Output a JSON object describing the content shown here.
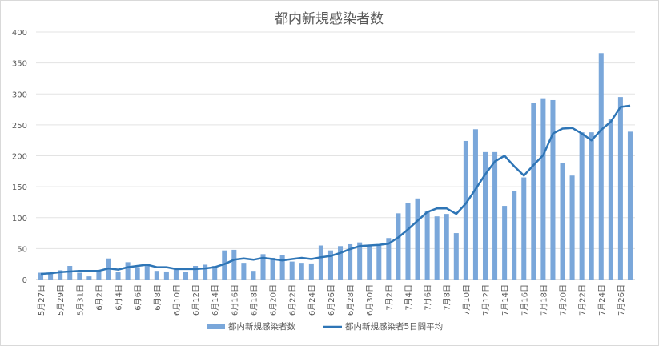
{
  "chart_data": {
    "type": "bar",
    "title": "都内新規感染者数",
    "xlabel": "",
    "ylabel": "",
    "ylim": [
      0,
      400
    ],
    "yticks": [
      0,
      50,
      100,
      150,
      200,
      250,
      300,
      350,
      400
    ],
    "grid": true,
    "legend_position": "bottom",
    "categories": [
      "5月27日",
      "5月28日",
      "5月29日",
      "5月30日",
      "5月31日",
      "6月1日",
      "6月2日",
      "6月3日",
      "6月4日",
      "6月5日",
      "6月6日",
      "6月7日",
      "6月8日",
      "6月9日",
      "6月10日",
      "6月11日",
      "6月12日",
      "6月13日",
      "6月14日",
      "6月15日",
      "6月16日",
      "6月17日",
      "6月18日",
      "6月19日",
      "6月20日",
      "6月21日",
      "6月22日",
      "6月23日",
      "6月24日",
      "6月25日",
      "6月26日",
      "6月27日",
      "6月28日",
      "6月29日",
      "6月30日",
      "7月1日",
      "7月2日",
      "7月3日",
      "7月4日",
      "7月5日",
      "7月6日",
      "7月7日",
      "7月8日",
      "7月9日",
      "7月10日",
      "7月11日",
      "7月12日",
      "7月13日",
      "7月14日",
      "7月15日",
      "7月16日",
      "7月17日",
      "7月18日",
      "7月19日",
      "7月20日",
      "7月21日",
      "7月22日",
      "7月23日",
      "7月24日",
      "7月25日",
      "7月26日",
      "7月27日"
    ],
    "series": [
      {
        "name": "都内新規感染者数",
        "kind": "bar",
        "color": "#7aa7da",
        "values": [
          11,
          9,
          15,
          22,
          11,
          5,
          13,
          34,
          12,
          28,
          20,
          25,
          14,
          13,
          18,
          12,
          22,
          24,
          22,
          47,
          48,
          27,
          14,
          41,
          35,
          39,
          29,
          27,
          26,
          55,
          47,
          54,
          57,
          60,
          54,
          55,
          67,
          107,
          124,
          131,
          111,
          102,
          106,
          75,
          224,
          243,
          206,
          206,
          119,
          143,
          165,
          286,
          293,
          290,
          188,
          168,
          238,
          238,
          366,
          260,
          295,
          239
        ],
        "show_every_other_label": true
      },
      {
        "name": "都内新規感染者5日間平均",
        "kind": "line",
        "color": "#2e75b6",
        "values": [
          9,
          10,
          12,
          13,
          14,
          14,
          14,
          18,
          16,
          20,
          22,
          24,
          20,
          20,
          17,
          17,
          17,
          18,
          20,
          25,
          32,
          34,
          32,
          35,
          33,
          31,
          33,
          35,
          33,
          36,
          38,
          43,
          49,
          54,
          55,
          56,
          58,
          68,
          81,
          95,
          109,
          115,
          115,
          106,
          123,
          146,
          170,
          191,
          200,
          183,
          168,
          185,
          201,
          236,
          244,
          245,
          236,
          225,
          242,
          255,
          279,
          281
        ]
      }
    ]
  }
}
